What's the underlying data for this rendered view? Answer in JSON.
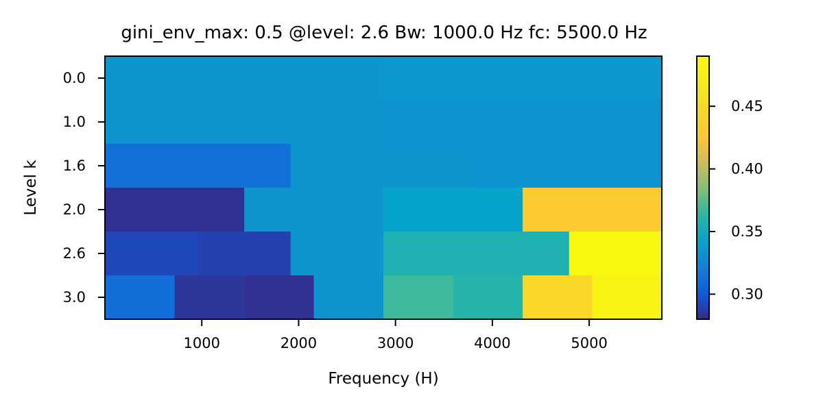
{
  "chart_data": {
    "type": "heatmap",
    "title": "gini_env_max: 0.5 @level: 2.6 Bw: 1000.0 Hz fc: 5500.0 Hz",
    "xlabel": "Frequency (H)",
    "ylabel": "Level k",
    "xlim": [
      0,
      5750
    ],
    "x_ticks": [
      1000,
      2000,
      3000,
      4000,
      5000
    ],
    "colorbar": {
      "range": [
        0.28,
        0.49
      ],
      "ticks": [
        0.3,
        0.35,
        0.4,
        0.45
      ],
      "tick_labels": [
        "0.30",
        "0.35",
        "0.40",
        "0.45"
      ],
      "colormap": "parula"
    },
    "rows": [
      {
        "level": "0.0",
        "cells": [
          {
            "start": 0,
            "end": 2875,
            "value": 0.334
          },
          {
            "start": 2875,
            "end": 5750,
            "value": 0.335
          }
        ]
      },
      {
        "level": "1.0",
        "cells": [
          {
            "start": 0,
            "end": 2875,
            "value": 0.334
          },
          {
            "start": 2875,
            "end": 5750,
            "value": 0.333
          }
        ]
      },
      {
        "level": "1.6",
        "cells": [
          {
            "start": 0,
            "end": 1917,
            "value": 0.313
          },
          {
            "start": 1917,
            "end": 3833,
            "value": 0.334
          },
          {
            "start": 3833,
            "end": 5750,
            "value": 0.333
          }
        ]
      },
      {
        "level": "2.0",
        "cells": [
          {
            "start": 0,
            "end": 1438,
            "value": 0.283
          },
          {
            "start": 1438,
            "end": 2875,
            "value": 0.334
          },
          {
            "start": 2875,
            "end": 4313,
            "value": 0.343
          },
          {
            "start": 4313,
            "end": 5750,
            "value": 0.43
          }
        ]
      },
      {
        "level": "2.6",
        "cells": [
          {
            "start": 0,
            "end": 958,
            "value": 0.292
          },
          {
            "start": 958,
            "end": 1917,
            "value": 0.29
          },
          {
            "start": 1917,
            "end": 2875,
            "value": 0.334
          },
          {
            "start": 2875,
            "end": 3833,
            "value": 0.356
          },
          {
            "start": 3833,
            "end": 4792,
            "value": 0.356
          },
          {
            "start": 4792,
            "end": 5750,
            "value": 0.488
          }
        ]
      },
      {
        "level": "3.0",
        "cells": [
          {
            "start": 0,
            "end": 719,
            "value": 0.312
          },
          {
            "start": 719,
            "end": 1438,
            "value": 0.285
          },
          {
            "start": 1438,
            "end": 2156,
            "value": 0.283
          },
          {
            "start": 2156,
            "end": 2875,
            "value": 0.334
          },
          {
            "start": 2875,
            "end": 3594,
            "value": 0.368
          },
          {
            "start": 3594,
            "end": 4313,
            "value": 0.36
          },
          {
            "start": 4313,
            "end": 5031,
            "value": 0.445
          },
          {
            "start": 5031,
            "end": 5750,
            "value": 0.48
          }
        ]
      }
    ]
  }
}
